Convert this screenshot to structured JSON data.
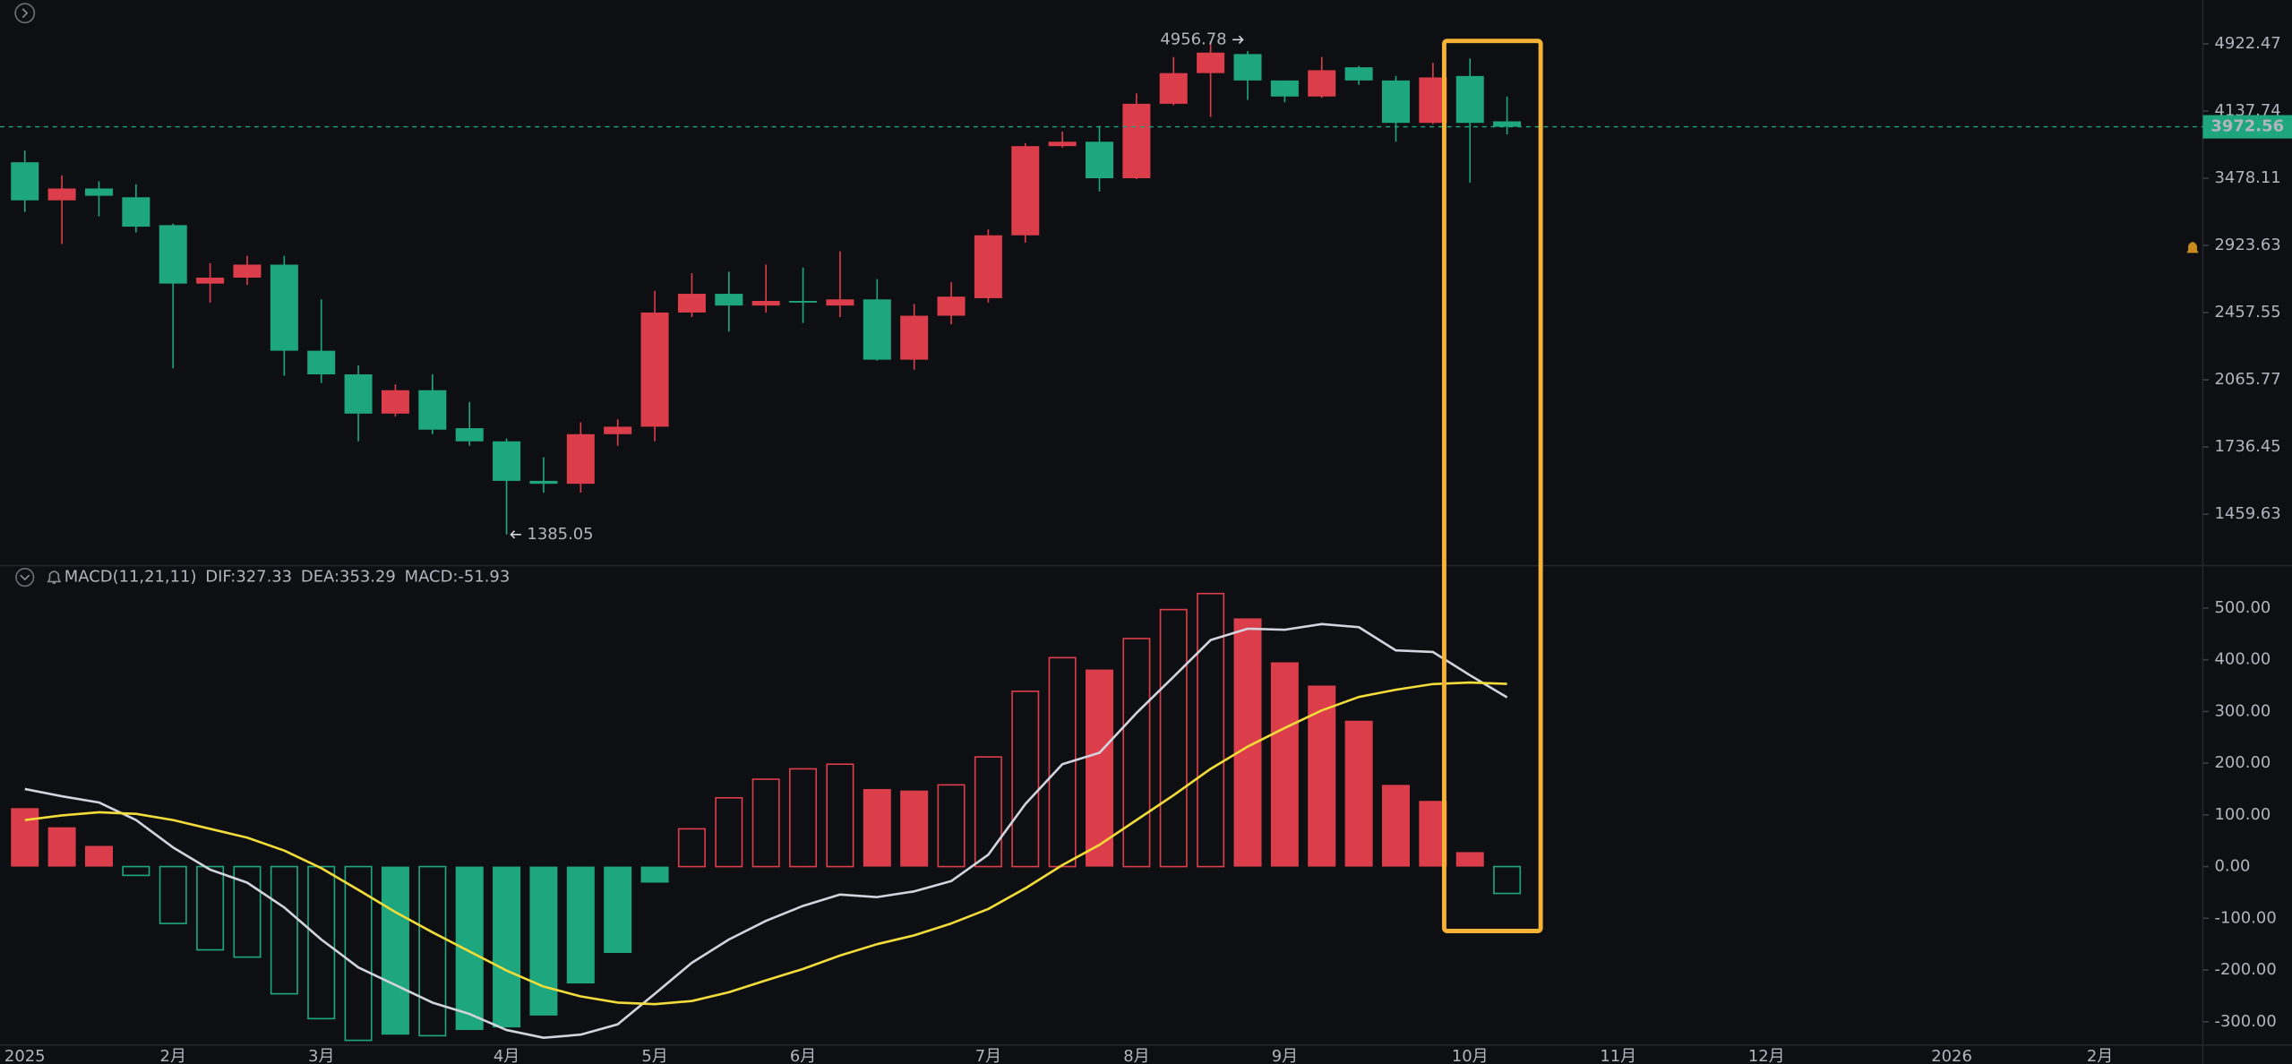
{
  "chart_data": [
    {
      "type": "candlestick",
      "categories": [
        "2025",
        null,
        null,
        null,
        "2月",
        null,
        null,
        null,
        "3月",
        null,
        null,
        null,
        null,
        "4月",
        null,
        null,
        null,
        "5月",
        null,
        null,
        null,
        "6月",
        null,
        null,
        null,
        null,
        "7月",
        null,
        null,
        null,
        "8月",
        null,
        null,
        null,
        "9月",
        null,
        null,
        null,
        null,
        "10月",
        null,
        null,
        null,
        "11月",
        null,
        null,
        null,
        "12月",
        null,
        null,
        null,
        null,
        "2026",
        null,
        null,
        null,
        "2月"
      ],
      "open": [
        3625,
        3285,
        3387,
        3311,
        3081,
        2649,
        2690,
        2782,
        2227,
        2095,
        1893,
        2011,
        1823,
        1762,
        1591,
        1579,
        1795,
        1830,
        2458,
        2580,
        2503,
        2533,
        2503,
        2543,
        2176,
        2438,
        2551,
        3001,
        3779,
        3822,
        3478,
        4216,
        4564,
        4794,
        4478,
        4296,
        4633,
        4478,
        4013,
        4530,
        4029,
        null,
        null,
        null,
        null,
        null,
        null,
        null,
        null,
        null,
        null,
        null,
        null,
        null,
        null,
        null,
        null
      ],
      "high": [
        3736,
        3504,
        3451,
        3425,
        3093,
        2793,
        2846,
        2846,
        2543,
        2144,
        2042,
        2095,
        1951,
        1775,
        1691,
        1851,
        1865,
        2600,
        2721,
        2731,
        2782,
        2761,
        2879,
        2680,
        2513,
        2660,
        3047,
        3808,
        3924,
        3983,
        4331,
        4758,
        4956.78,
        4831,
        4478,
        4758,
        4650,
        4530,
        4686,
        4740,
        4296,
        null,
        null,
        null,
        null,
        null,
        null,
        null,
        null,
        null,
        null,
        null,
        null,
        null,
        null,
        null,
        null
      ],
      "low": [
        3188,
        2934,
        3152,
        3023,
        2128,
        2522,
        2639,
        2088,
        2049,
        1762,
        1879,
        1795,
        1742,
        1385.05,
        1543,
        1543,
        1742,
        1762,
        2429,
        2339,
        2458,
        2393,
        2429,
        2170,
        2120,
        2384,
        2522,
        2945,
        3765,
        3361,
        3470,
        4200,
        4075,
        4258,
        4232,
        4280,
        4428,
        3822,
        4000,
        3439,
        3895,
        null,
        null,
        null,
        null,
        null,
        null,
        null,
        null,
        null,
        null,
        null,
        null,
        null,
        null,
        null,
        null
      ],
      "close": [
        3285,
        3387,
        3324,
        3069,
        2649,
        2690,
        2782,
        2227,
        2095,
        1893,
        2011,
        1816,
        1762,
        1591,
        1579,
        1795,
        1830,
        2458,
        2580,
        2503,
        2533,
        2522,
        2543,
        2176,
        2438,
        2561,
        3001,
        3779,
        3822,
        3478,
        4216,
        4564,
        4812,
        4478,
        4296,
        4598,
        4478,
        4013,
        4513,
        4013,
        3972.56,
        null,
        null,
        null,
        null,
        null,
        null,
        null,
        null,
        null,
        null,
        null,
        null,
        null,
        null,
        null,
        null
      ],
      "up_color": "#db3d4a",
      "down_color": "#1ea67f",
      "log_scale": true,
      "ylim": [
        1278,
        5513
      ],
      "yticks": [
        4922.47,
        4137.74,
        3478.11,
        2923.63,
        2457.55,
        2065.77,
        1736.45,
        1459.63
      ],
      "last_price_line": true
    },
    {
      "type": "macd",
      "title": "MACD(11,21,11)",
      "series": [
        {
          "name": "DIF:327.33",
          "kind": "line",
          "color": "#d1d4dc",
          "values": [
            150,
            136,
            124,
            90,
            37,
            -6,
            -31,
            -79,
            -141,
            -195,
            -229,
            -263,
            -285,
            -316,
            -331,
            -325,
            -305,
            -246,
            -186,
            -141,
            -105,
            -76,
            -54,
            -59,
            -48,
            -28,
            23,
            121,
            198,
            220,
            297,
            367,
            438,
            460,
            458,
            469,
            463,
            418,
            415,
            370,
            327.33
          ]
        },
        {
          "name": "DEA:353.29",
          "kind": "line",
          "color": "#f2dc3a",
          "values": [
            90,
            99,
            105,
            102,
            90,
            73,
            56,
            31,
            -3,
            -45,
            -88,
            -127,
            -164,
            -201,
            -232,
            -251,
            -263,
            -266,
            -260,
            -243,
            -220,
            -198,
            -172,
            -150,
            -133,
            -110,
            -82,
            -42,
            3,
            42,
            90,
            138,
            189,
            232,
            268,
            302,
            328,
            342,
            353,
            356,
            353.29
          ]
        },
        {
          "name": "MACD:-51.93",
          "kind": "histogram",
          "up_color": "#db3d4a",
          "down_color": "#1ea67f",
          "values": [
            113,
            76,
            40,
            -17,
            -110,
            -161,
            -175,
            -246,
            -294,
            -336,
            -325,
            -327,
            -316,
            -311,
            -288,
            -226,
            -167,
            -31,
            73,
            133,
            169,
            189,
            198,
            150,
            147,
            158,
            212,
            339,
            404,
            381,
            441,
            497,
            528,
            480,
            395,
            350,
            282,
            158,
            127,
            28,
            -51.93
          ]
        }
      ],
      "ylim": [
        -345,
        582
      ],
      "yticks": [
        {
          "value": 500,
          "label": "500.00"
        },
        {
          "value": 400,
          "label": "400.00"
        },
        {
          "value": 300,
          "label": "300.00"
        },
        {
          "value": 200,
          "label": "200.00"
        },
        {
          "value": 100,
          "label": "100.00"
        },
        {
          "value": 0,
          "label": "0.00"
        },
        {
          "value": -100,
          "label": "-100.00"
        },
        {
          "value": -200,
          "label": "-200.00"
        },
        {
          "value": -300,
          "label": "-300.00"
        }
      ]
    }
  ]
}
